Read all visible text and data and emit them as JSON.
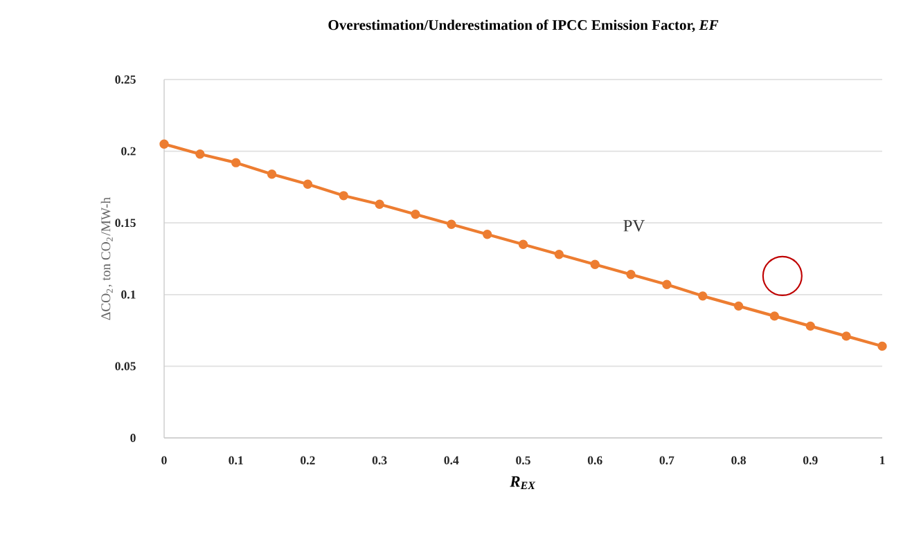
{
  "chart_data": {
    "type": "line",
    "title": "Overestimation/Underestimation of IPCC Emission Factor, *EF*",
    "xlabel": "R$_{EX}$",
    "ylabel": "ΔCO$_{2}$, ton CO$_{2}$/MW-h",
    "x": [
      0,
      0.05,
      0.1,
      0.15,
      0.2,
      0.25,
      0.3,
      0.35,
      0.4,
      0.45,
      0.5,
      0.55,
      0.6,
      0.65,
      0.7,
      0.75,
      0.8,
      0.85,
      0.9,
      0.95,
      1
    ],
    "series": [
      {
        "name": "PV",
        "color": "#ed7d31",
        "values": [
          0.205,
          0.198,
          0.192,
          0.184,
          0.177,
          0.169,
          0.163,
          0.156,
          0.149,
          0.142,
          0.135,
          0.128,
          0.121,
          0.114,
          0.107,
          0.099,
          0.092,
          0.085,
          0.078,
          0.071,
          0.064
        ]
      }
    ],
    "xlim": [
      0,
      1
    ],
    "ylim": [
      0,
      0.25
    ],
    "xticks": [
      0,
      0.1,
      0.2,
      0.3,
      0.4,
      0.5,
      0.6,
      0.7,
      0.8,
      0.9,
      1
    ],
    "yticks": [
      0,
      0.05,
      0.1,
      0.15,
      0.2,
      0.25
    ],
    "grid": "y",
    "marker": "circle",
    "line_style": "solid",
    "legend": false
  }
}
